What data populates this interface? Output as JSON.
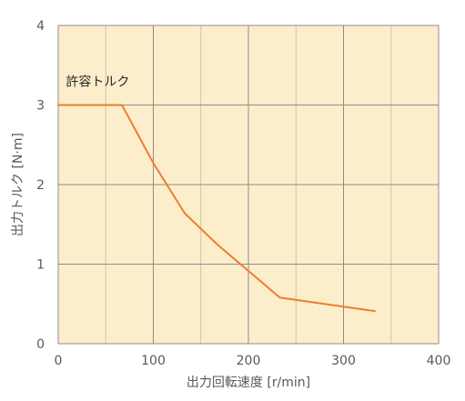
{
  "chart_data": {
    "type": "line",
    "title": "",
    "xlabel": "出力回転速度 [r/min]",
    "ylabel": "出力トルク [N·m]",
    "xlim": [
      0,
      400
    ],
    "ylim": [
      0,
      4
    ],
    "x_ticks": [
      0,
      100,
      200,
      300,
      400
    ],
    "y_ticks": [
      0,
      1,
      2,
      3,
      4
    ],
    "x_minor_grid": [
      50,
      150,
      250,
      350
    ],
    "grid": true,
    "colors": {
      "plot_background": "#fdeecb",
      "major_grid": "#8c8c8c",
      "minor_grid": "#cfc2a6",
      "series": "#ed7d31"
    },
    "series": [
      {
        "x": [
          0,
          67,
          100,
          133,
          167,
          233,
          333
        ],
        "y": [
          3.0,
          3.0,
          2.27,
          1.64,
          1.25,
          0.58,
          0.41
        ]
      }
    ],
    "annotations": [
      {
        "text": "許容トルク",
        "x": 8,
        "y": 3.3
      }
    ]
  }
}
